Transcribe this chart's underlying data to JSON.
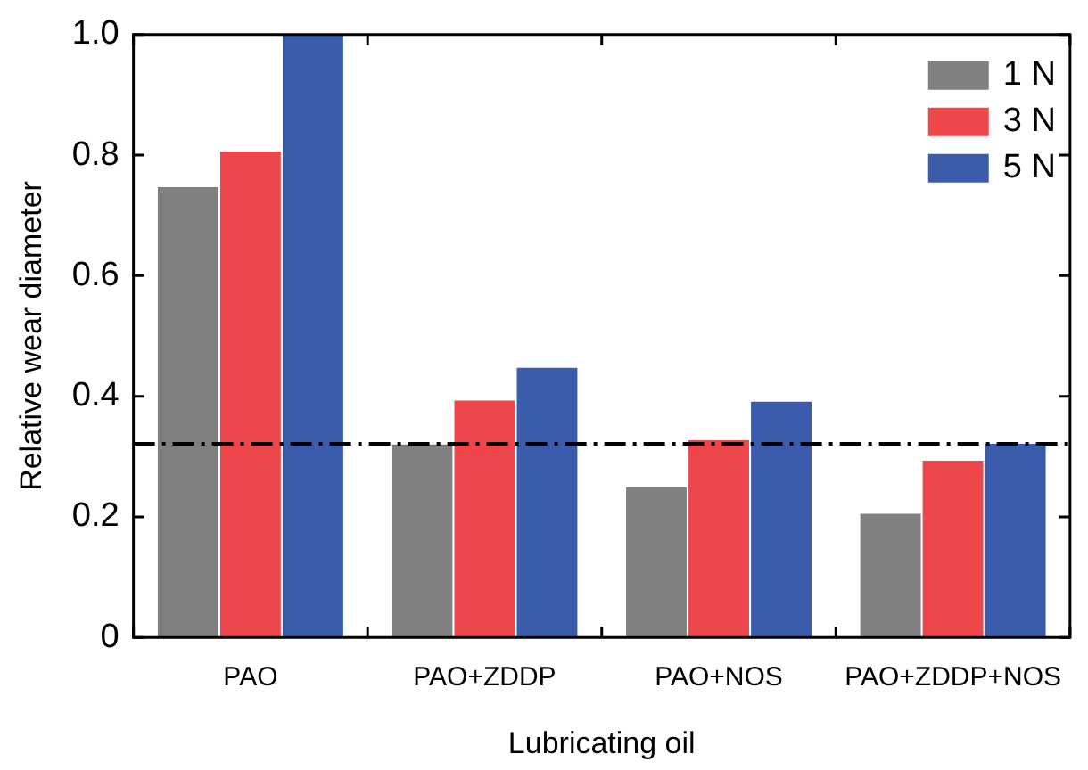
{
  "chart_data": {
    "type": "bar",
    "xlabel": "Lubricating oil",
    "ylabel": "Relative wear diameter",
    "categories": [
      "PAO",
      "PAO+ZDDP",
      "PAO+NOS",
      "PAO+ZDDP+NOS"
    ],
    "series": [
      {
        "name": "1 N",
        "color": "#808083",
        "values": [
          0.747,
          0.32,
          0.249,
          0.205
        ]
      },
      {
        "name": "3 N",
        "color": "#ed474b",
        "values": [
          0.806,
          0.393,
          0.327,
          0.293
        ]
      },
      {
        "name": "5 N",
        "color": "#3a5cab",
        "values": [
          1.0,
          0.447,
          0.391,
          0.321
        ]
      }
    ],
    "ylim": [
      0,
      1
    ],
    "yticks": [
      0,
      {
        "value": 0.2,
        "label": "0.2"
      },
      {
        "value": 0.4,
        "label": "0.4"
      },
      {
        "value": 0.6,
        "label": "0.6"
      },
      {
        "value": 0.8,
        "label": "0.8"
      },
      {
        "value": 1,
        "label": "1.0"
      }
    ],
    "ref_lines": [
      {
        "axis": "y",
        "value": 0.321,
        "color": "#000000",
        "line_style": "dashdot"
      }
    ],
    "grid": false,
    "legend": "top right"
  }
}
